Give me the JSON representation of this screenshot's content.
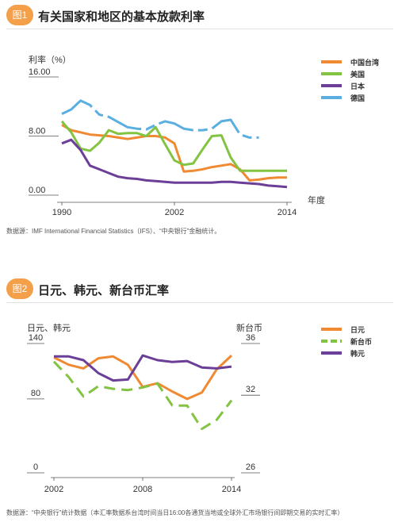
{
  "chart1": {
    "badge": "图1",
    "title": "有关国家和地区的基本放款利率",
    "source": "数据源：IMF International Financial Statistics（IFS）、“中央银行”金融统计。"
  },
  "chart2": {
    "badge": "图2",
    "title": "日元、韩元、新台币汇率",
    "source": "数据源：“中央银行”统计数据（本汇率数据系台湾时间当日16:00各通货当地或全球外汇市场银行间即期交易的实时汇率）"
  },
  "chart_data": [
    {
      "type": "line",
      "title": "有关国家和地区的基本放款利率",
      "ylabel": "利率（%）",
      "xlabel": "年度",
      "ylim": [
        0,
        16
      ],
      "xlim": [
        1990,
        2014
      ],
      "yticks": [
        "0.00",
        "8.00",
        "16.00"
      ],
      "xticks": [
        1990,
        2002,
        2014
      ],
      "legend_position": "top-right",
      "series": [
        {
          "name": "中国台湾",
          "color": "#f08a32",
          "x": [
            1990,
            1991,
            1992,
            1993,
            1994,
            1995,
            1996,
            1997,
            1998,
            1999,
            2000,
            2001,
            2002,
            2003,
            2004,
            2005,
            2006,
            2007,
            2008,
            2009,
            2010,
            2011,
            2012,
            2013,
            2014
          ],
          "y": [
            9.5,
            8.8,
            8.5,
            8.2,
            8.1,
            8.0,
            7.8,
            7.6,
            7.8,
            8.0,
            8.0,
            7.8,
            7.0,
            3.2,
            3.3,
            3.5,
            3.8,
            4.0,
            4.2,
            3.5,
            2.0,
            2.1,
            2.3,
            2.4,
            2.4
          ]
        },
        {
          "name": "美国",
          "color": "#82c341",
          "x": [
            1990,
            1991,
            1992,
            1993,
            1994,
            1995,
            1996,
            1997,
            1998,
            1999,
            2000,
            2001,
            2002,
            2003,
            2004,
            2005,
            2006,
            2007,
            2008,
            2009,
            2010,
            2011,
            2012,
            2013,
            2014
          ],
          "y": [
            10.0,
            8.5,
            6.3,
            6.0,
            7.1,
            8.8,
            8.3,
            8.4,
            8.4,
            8.0,
            9.2,
            6.9,
            4.7,
            4.1,
            4.3,
            6.2,
            8.0,
            8.1,
            5.1,
            3.3,
            3.3,
            3.3,
            3.3,
            3.3,
            3.3
          ]
        },
        {
          "name": "日本",
          "color": "#6b3e98",
          "x": [
            1990,
            1991,
            1992,
            1993,
            1994,
            1995,
            1996,
            1997,
            1998,
            1999,
            2000,
            2001,
            2002,
            2003,
            2004,
            2005,
            2006,
            2007,
            2008,
            2009,
            2010,
            2011,
            2012,
            2013,
            2014
          ],
          "y": [
            7.0,
            7.5,
            6.1,
            4.0,
            3.5,
            3.0,
            2.5,
            2.3,
            2.2,
            2.0,
            1.9,
            1.8,
            1.7,
            1.7,
            1.7,
            1.7,
            1.7,
            1.8,
            1.8,
            1.7,
            1.6,
            1.5,
            1.3,
            1.2,
            1.1
          ]
        },
        {
          "name": "德国",
          "color": "#5aaee0",
          "x": [
            1990,
            1991,
            1992,
            1993,
            1994,
            1995,
            1996,
            1997,
            1998,
            1999,
            2000,
            2001,
            2002,
            2003,
            2004,
            2005,
            2006,
            2007,
            2008,
            2009,
            2010,
            2011,
            2012,
            2013,
            2014
          ],
          "y": [
            11.0,
            11.6,
            12.8,
            12.2,
            10.9,
            10.6,
            9.9,
            9.2,
            9.0,
            8.9,
            9.5,
            10.0,
            9.7,
            9.0,
            8.8,
            8.8,
            9.0,
            10.0,
            10.2,
            8.2,
            7.8,
            7.8,
            null,
            null,
            null
          ]
        }
      ]
    },
    {
      "type": "line",
      "title": "日元、韩元、新台币汇率",
      "ylabel": "日元、韩元",
      "ylabel_right": "新台币",
      "ylim": [
        0,
        140
      ],
      "ylim_right": [
        26,
        36
      ],
      "xlim": [
        2002,
        2014
      ],
      "yticks": [
        "0",
        "80",
        "140"
      ],
      "yticks_right": [
        "26",
        "32",
        "36"
      ],
      "xticks": [
        2002,
        2008,
        2014
      ],
      "legend_position": "top-right",
      "series": [
        {
          "name": "日元",
          "axis": "left",
          "color": "#f08a32",
          "x": [
            2002,
            2003,
            2004,
            2005,
            2006,
            2007,
            2008,
            2009,
            2010,
            2011,
            2012,
            2013,
            2014
          ],
          "y": [
            125,
            117,
            113,
            124,
            126,
            117,
            93,
            97,
            88,
            80,
            87,
            112,
            127
          ]
        },
        {
          "name": "新台币",
          "axis": "right",
          "color": "#82c341",
          "x": [
            2002,
            2003,
            2004,
            2005,
            2006,
            2007,
            2008,
            2009,
            2010,
            2011,
            2012,
            2013,
            2014
          ],
          "y": [
            34.6,
            33.4,
            31.9,
            32.7,
            32.5,
            32.4,
            32.6,
            32.9,
            31.2,
            31.2,
            29.4,
            30.1,
            31.6
          ]
        },
        {
          "name": "韩元",
          "axis": "left",
          "color": "#6b3e98",
          "x": [
            2002,
            2003,
            2004,
            2005,
            2006,
            2007,
            2008,
            2009,
            2010,
            2011,
            2012,
            2013,
            2014
          ],
          "y": [
            126,
            126,
            122,
            108,
            100,
            101,
            127,
            122,
            120,
            121,
            114,
            113,
            115
          ]
        }
      ]
    }
  ]
}
